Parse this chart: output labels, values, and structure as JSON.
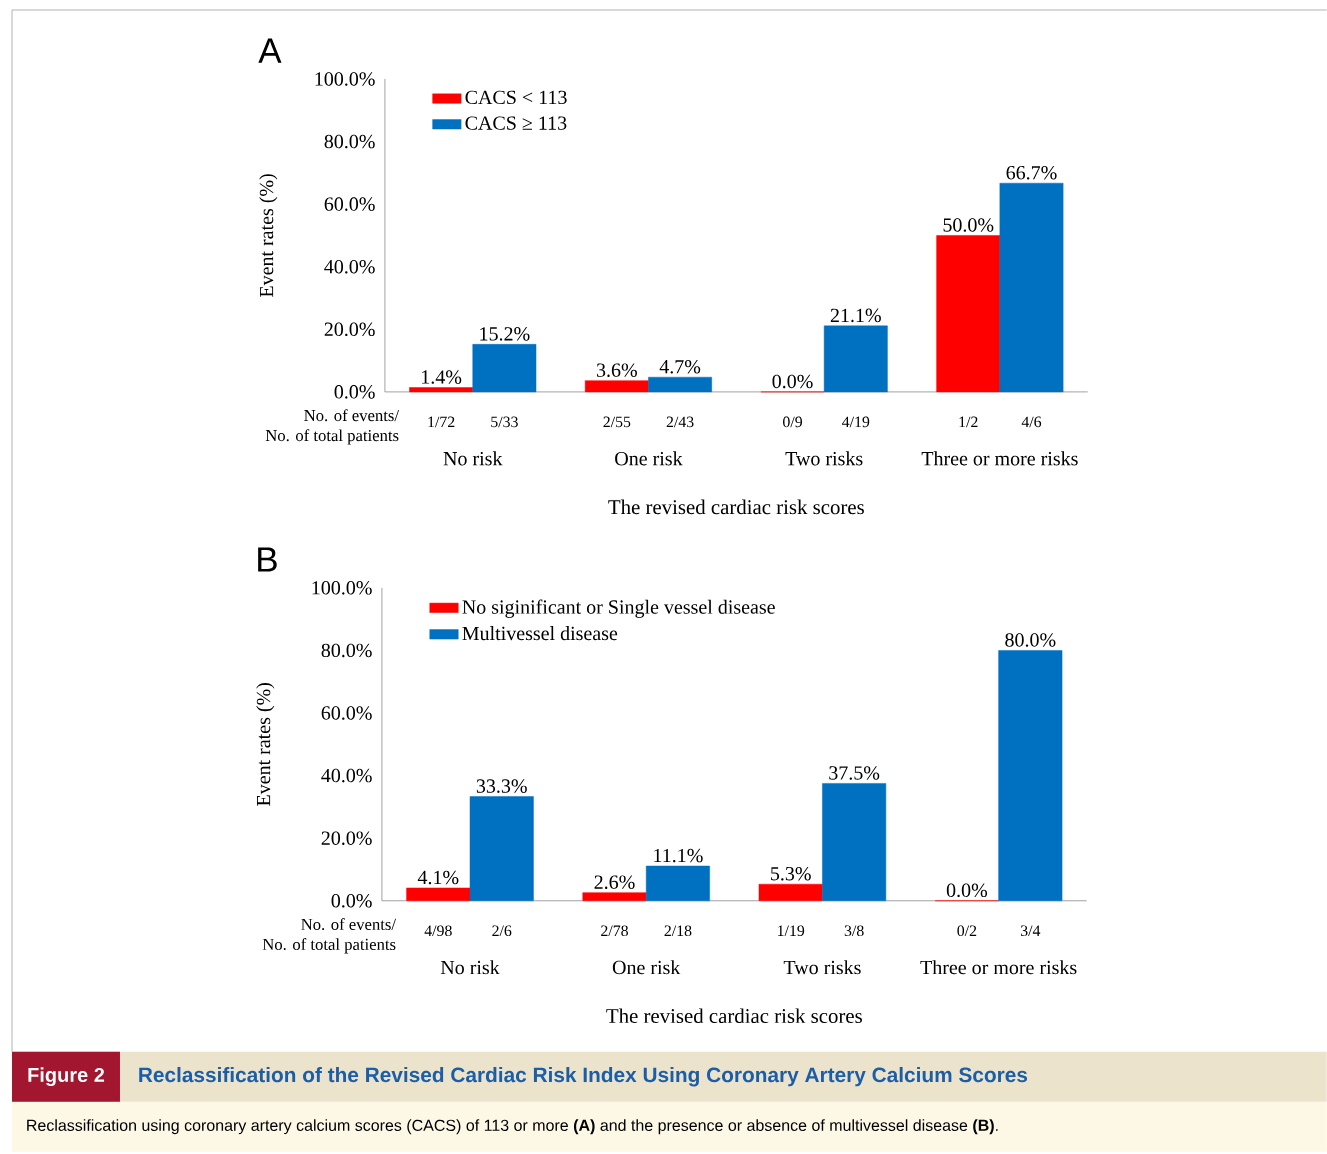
{
  "chart_data": [
    {
      "type": "bar",
      "title": "A",
      "xlabel": "The revised cardiac risk scores",
      "ylabel": "Event rates (%)",
      "categories": [
        "No risk",
        "One risk",
        "Two risks",
        "Three or more risks"
      ],
      "series": [
        {
          "name": "CACS < 113",
          "color": "#ff0000",
          "values": [
            1.4,
            3.6,
            0.0,
            50.0
          ],
          "value_labels": [
            "1.4%",
            "3.6%",
            "0.0%",
            "50.0%"
          ]
        },
        {
          "name": "CACS ≥ 113",
          "color": "#0070c0",
          "values": [
            15.2,
            4.7,
            21.1,
            66.7
          ],
          "value_labels": [
            "15.2%",
            "4.7%",
            "21.1%",
            "66.7%"
          ]
        }
      ],
      "ylim": [
        0,
        100
      ],
      "yticks": [
        {
          "value": 0,
          "label": "0.0%"
        },
        {
          "value": 20,
          "label": "20.0%"
        },
        {
          "value": 40,
          "label": "40.0%"
        },
        {
          "value": 60,
          "label": "60.0%"
        },
        {
          "value": 80,
          "label": "80.0%"
        },
        {
          "value": 100,
          "label": "100.0%"
        }
      ],
      "legend": "top left",
      "annotations": [
        "No. of events/",
        "No. of total patients",
        "1/72",
        "5/33",
        "2/55",
        "2/43",
        "0/9",
        "4/19",
        "1/2",
        "4/6"
      ]
    },
    {
      "type": "bar",
      "title": "B",
      "xlabel": "The revised cardiac risk scores",
      "ylabel": "Event rates (%)",
      "categories": [
        "No risk",
        "One risk",
        "Two risks",
        "Three or more risks"
      ],
      "series": [
        {
          "name": "No siginificant or Single vessel disease",
          "color": "#ff0000",
          "values": [
            4.1,
            2.6,
            5.3,
            0.0
          ],
          "value_labels": [
            "4.1%",
            "2.6%",
            "5.3%",
            "0.0%"
          ]
        },
        {
          "name": "Multivessel disease",
          "color": "#0070c0",
          "values": [
            33.3,
            11.1,
            37.5,
            80.0
          ],
          "value_labels": [
            "33.3%",
            "11.1%",
            "37.5%",
            "80.0%"
          ]
        }
      ],
      "ylim": [
        0,
        100
      ],
      "yticks": [
        {
          "value": 0,
          "label": "0.0%"
        },
        {
          "value": 20,
          "label": "20.0%"
        },
        {
          "value": 40,
          "label": "40.0%"
        },
        {
          "value": 60,
          "label": "60.0%"
        },
        {
          "value": 80,
          "label": "80.0%"
        },
        {
          "value": 100,
          "label": "100.0%"
        }
      ],
      "legend": "top left",
      "annotations": [
        "No. of events/",
        "No. of total patients",
        "4/98",
        "2/6",
        "2/78",
        "2/18",
        "1/19",
        "3/8",
        "0/2",
        "3/4",
        "Figure 2",
        "Reclassification of the Revised Cardiac Risk Index Using Coronary Artery Calcium Scores",
        "Reclassification using coronary artery calcium scores (CACS) of 113 or more **(A)** and the presence or absence of multivessel disease **(B)**."
      ]
    }
  ]
}
